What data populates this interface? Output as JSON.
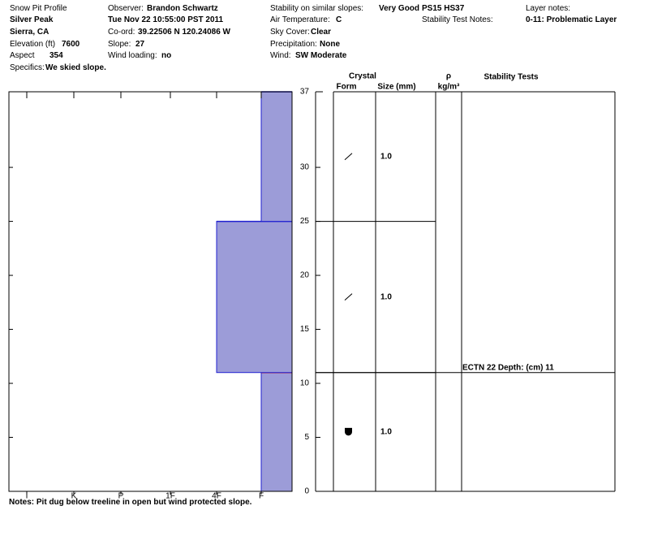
{
  "header": {
    "title": "Snow Pit Profile",
    "location": "Silver Peak",
    "region": "Sierra, CA",
    "elevation_label": "Elevation (ft)",
    "elevation": 7600,
    "aspect_label": "Aspect",
    "aspect": 354,
    "specifics_label": "Specifics:",
    "specifics": "We skied slope.",
    "observer_label": "Observer:",
    "observer": "Brandon Schwartz",
    "datetime": "Tue Nov 22 10:55:00 PST 2011",
    "coord_label": "Co-ord:",
    "coord": "39.22506 N 120.24086 W",
    "slope_label": "Slope:",
    "slope": 27,
    "wind_loading_label": "Wind loading:",
    "wind_loading": "no",
    "stability_label": "Stability on similar slopes:",
    "stability": "Very Good",
    "air_temp_label": "Air Temperature:",
    "air_temp": "C",
    "sky_label": "Sky Cover:",
    "sky": "Clear",
    "precip_label": "Precipitation:",
    "precip": "None",
    "wind_label": "Wind:",
    "wind": "SW Moderate",
    "ps_hs": "PS15 HS37",
    "test_notes_label": "Stability Test Notes:",
    "layer_notes_label": "Layer notes:",
    "layer_notes": "0-11: Problematic Layer"
  },
  "chart_data": {
    "type": "snowpit",
    "ylim": [
      0,
      37
    ],
    "yticks": [
      0,
      5,
      10,
      15,
      20,
      25,
      30,
      37
    ],
    "hardness_levels": [
      "I",
      "K",
      "P",
      "1F",
      "4F",
      "F"
    ],
    "columns": {
      "crystal": "Crystal",
      "form": "Form",
      "size": "Size (mm)",
      "rho": "ρ",
      "density": "kg/m³",
      "tests": "Stability Tests"
    },
    "color": "#9c9cd8",
    "layers": [
      {
        "bottom": 0,
        "top": 11,
        "hardness": "F",
        "form": "cup",
        "size": "1.0",
        "top_color": "#e00000"
      },
      {
        "bottom": 11,
        "top": 25,
        "hardness": "4F",
        "form": "slash",
        "size": "1.0",
        "top_color": "#2020d0"
      },
      {
        "bottom": 25,
        "top": 37,
        "hardness": "F",
        "form": "slash",
        "size": "1.0",
        "top_color": "#2020d0"
      }
    ],
    "tests": [
      {
        "label": "ECTN 22  Depth: (cm) 11",
        "depth": 11
      }
    ],
    "notes": "Notes:  Pit dug below treeline in open but wind protected slope."
  }
}
